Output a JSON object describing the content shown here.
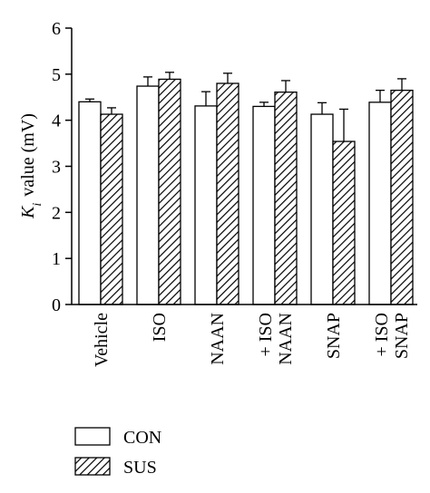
{
  "chart_data": {
    "type": "bar",
    "title": "",
    "xlabel": "",
    "ylabel": "K",
    "ylabel_subscript": "i",
    "ylabel_rest": " value (mV)",
    "ylim": [
      0,
      6
    ],
    "yticks": [
      0,
      1,
      2,
      3,
      4,
      5,
      6
    ],
    "categories": [
      [
        "Vehicle"
      ],
      [
        "ISO"
      ],
      [
        "NAAN"
      ],
      [
        "NAAN",
        "+ ISO"
      ],
      [
        "SNAP"
      ],
      [
        "SNAP",
        "+ ISO"
      ]
    ],
    "series": [
      {
        "name": "CON",
        "values": [
          4.4,
          4.74,
          4.31,
          4.3,
          4.13,
          4.39
        ],
        "errors": [
          0.06,
          0.2,
          0.31,
          0.09,
          0.25,
          0.26
        ],
        "pattern": "solid",
        "fill": "#ffffff"
      },
      {
        "name": "SUS",
        "values": [
          4.13,
          4.89,
          4.8,
          4.61,
          3.54,
          4.65
        ],
        "errors": [
          0.14,
          0.15,
          0.22,
          0.25,
          0.7,
          0.25
        ],
        "pattern": "hatched",
        "fill": "#ffffff"
      }
    ],
    "legend_position": "bottom-left",
    "grid": false,
    "colors": {
      "stroke": "#000000",
      "background": "#ffffff"
    }
  }
}
